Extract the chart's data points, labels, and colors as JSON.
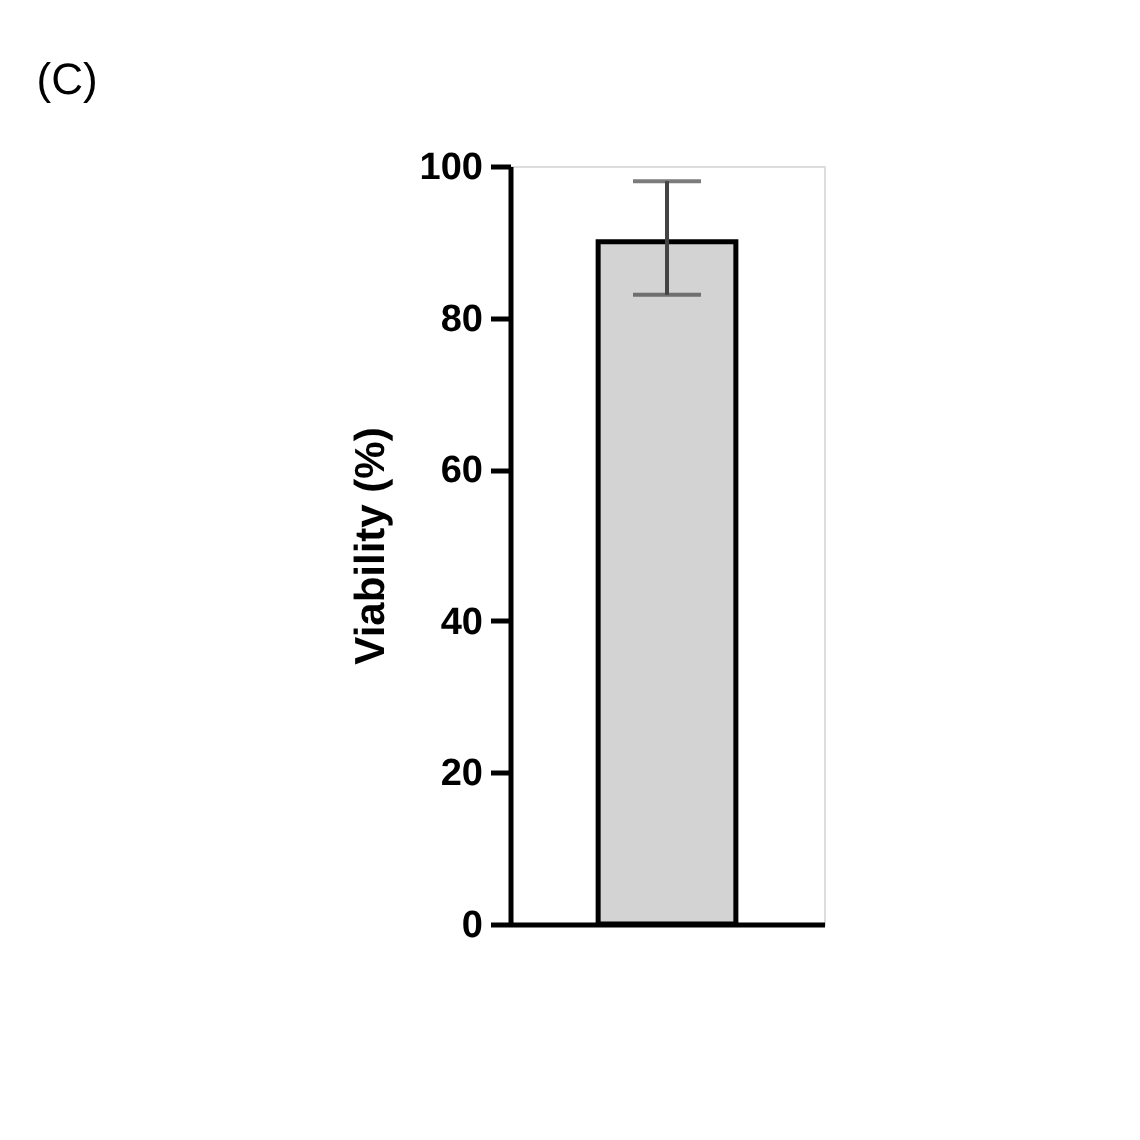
{
  "chart_data": {
    "type": "bar",
    "title": "(C)",
    "ylabel": "Viability (%)",
    "categories": [
      null
    ],
    "values": [
      90
    ],
    "errors": [
      [
        83,
        98
      ]
    ],
    "color": "#d3d3d3",
    "ylim": [
      0,
      100
    ],
    "yticks": [
      0,
      20,
      40,
      60,
      80,
      100
    ],
    "grid": false,
    "tick_labels": "y"
  }
}
